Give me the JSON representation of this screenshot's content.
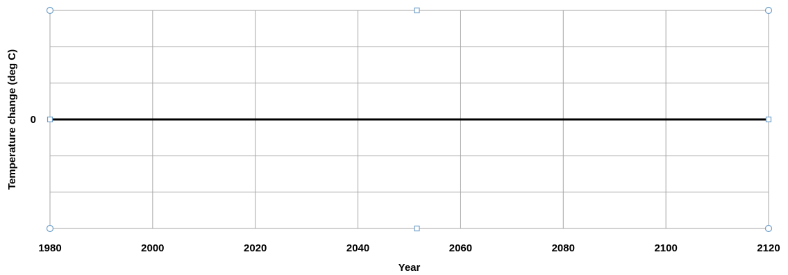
{
  "chart_data": {
    "type": "line",
    "title": "",
    "xlabel": "Year",
    "ylabel": "Temperature change (deg C)",
    "xlim": [
      1980,
      2120
    ],
    "x_ticks": [
      1980,
      2000,
      2020,
      2040,
      2060,
      2080,
      2100,
      2120
    ],
    "x_tick_labels": [
      "1980",
      "2000",
      "2020",
      "2040",
      "2060",
      "2080",
      "2100",
      "2120"
    ],
    "y_tick_labels": [
      "0"
    ],
    "y_gridlines": 6,
    "grid": true,
    "legend": "none",
    "series": [
      {
        "x": [
          1980,
          2120
        ],
        "values": [
          0,
          0
        ]
      }
    ],
    "colors": {
      "series_line": "#000000",
      "grid": "#a6a6a6",
      "selection_handle": "#6f9fc9",
      "handle_fill": "#ffffff"
    }
  }
}
